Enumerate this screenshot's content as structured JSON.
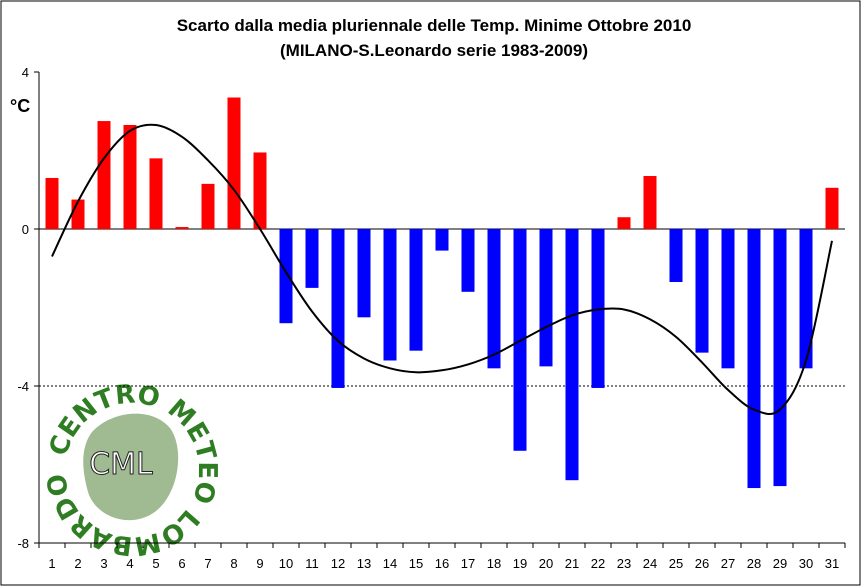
{
  "chart_data": {
    "type": "bar",
    "title": "Scarto dalla media pluriennale delle Temp. Minime Ottobre 2010",
    "subtitle": "(MILANO-S.Leonardo serie 1983-2009)",
    "ylabel": "°C",
    "xlabel": "",
    "ylim": [
      -8,
      4
    ],
    "yticks": [
      4,
      0,
      -4,
      -8
    ],
    "reference_line": -4,
    "grid": false,
    "colors": {
      "positive": "#ff0000",
      "negative": "#0000ff",
      "trend": "#000000"
    },
    "categories": [
      "1",
      "2",
      "3",
      "4",
      "5",
      "6",
      "7",
      "8",
      "9",
      "10",
      "11",
      "12",
      "13",
      "14",
      "15",
      "16",
      "17",
      "18",
      "19",
      "20",
      "21",
      "22",
      "23",
      "24",
      "25",
      "26",
      "27",
      "28",
      "29",
      "30",
      "31"
    ],
    "values": [
      1.3,
      0.75,
      2.75,
      2.65,
      1.8,
      0.05,
      1.15,
      3.35,
      1.95,
      -2.4,
      -1.5,
      -4.05,
      -2.25,
      -3.35,
      -3.1,
      -0.55,
      -1.6,
      -3.55,
      -5.65,
      -3.5,
      -6.4,
      -4.05,
      0.3,
      1.35,
      -1.35,
      -3.15,
      -3.55,
      -6.6,
      -6.55,
      -3.55,
      1.05
    ],
    "trend": [
      -0.7,
      0.7,
      1.8,
      2.5,
      2.65,
      2.35,
      1.75,
      1.0,
      0.0,
      -1.1,
      -2.1,
      -2.85,
      -3.3,
      -3.55,
      -3.65,
      -3.6,
      -3.45,
      -3.2,
      -2.85,
      -2.5,
      -2.2,
      -2.05,
      -2.05,
      -2.3,
      -2.75,
      -3.4,
      -4.1,
      -4.6,
      -4.6,
      -3.35,
      -0.3
    ]
  },
  "logo": {
    "ring_text": "CENTRO METEO LOMBARDO",
    "center_text": "CML"
  }
}
